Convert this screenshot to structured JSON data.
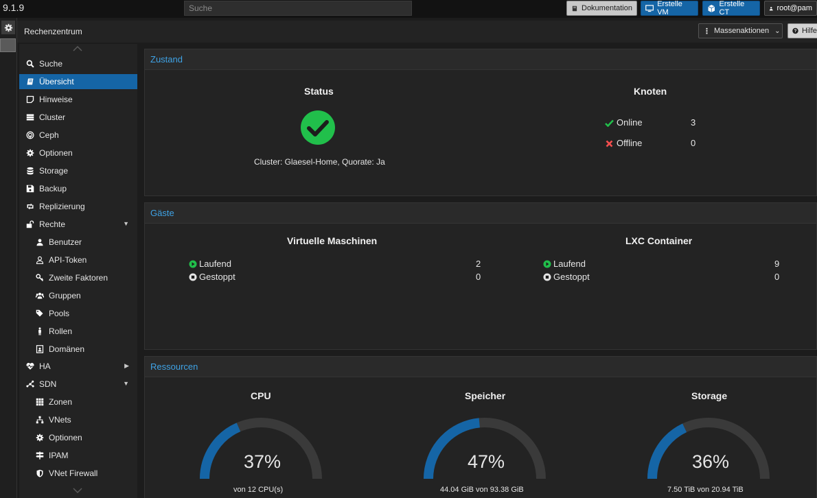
{
  "topbar": {
    "version": "9.1.9",
    "search_placeholder": "Suche",
    "docs_label": "Dokumentation",
    "create_vm_label": "Erstelle VM",
    "create_ct_label": "Erstelle CT",
    "user_label": "root@pam"
  },
  "header": {
    "title": "Rechenzentrum",
    "bulk_label": "Massenaktionen",
    "help_label": "Hilfe"
  },
  "nav": {
    "items": [
      {
        "label": "Suche",
        "icon": "search-icon"
      },
      {
        "label": "Übersicht",
        "icon": "book-icon"
      },
      {
        "label": "Hinweise",
        "icon": "note-icon"
      },
      {
        "label": "Cluster",
        "icon": "server-icon"
      },
      {
        "label": "Ceph",
        "icon": "ceph-icon"
      },
      {
        "label": "Optionen",
        "icon": "gear-icon"
      },
      {
        "label": "Storage",
        "icon": "database-icon"
      },
      {
        "label": "Backup",
        "icon": "floppy-icon"
      },
      {
        "label": "Replizierung",
        "icon": "retweet-icon"
      },
      {
        "label": "Rechte",
        "icon": "unlock-icon"
      },
      {
        "label": "Benutzer",
        "icon": "user-icon"
      },
      {
        "label": "API-Token",
        "icon": "user-outline-icon"
      },
      {
        "label": "Zweite Faktoren",
        "icon": "key-icon"
      },
      {
        "label": "Gruppen",
        "icon": "users-icon"
      },
      {
        "label": "Pools",
        "icon": "tags-icon"
      },
      {
        "label": "Rollen",
        "icon": "male-icon"
      },
      {
        "label": "Domänen",
        "icon": "id-badge-icon"
      },
      {
        "label": "HA",
        "icon": "heartbeat-icon"
      },
      {
        "label": "SDN",
        "icon": "sdn-icon"
      },
      {
        "label": "Zonen",
        "icon": "grid-icon"
      },
      {
        "label": "VNets",
        "icon": "sitemap-icon"
      },
      {
        "label": "Optionen",
        "icon": "gear-icon"
      },
      {
        "label": "IPAM",
        "icon": "signpost-icon"
      },
      {
        "label": "VNet Firewall",
        "icon": "shield-icon"
      }
    ]
  },
  "status_panel": {
    "title": "Zustand",
    "status_heading": "Status",
    "cluster_text": "Cluster: Glaesel-Home, Quorate: Ja",
    "nodes_heading": "Knoten",
    "online_label": "Online",
    "online_count": "3",
    "offline_label": "Offline",
    "offline_count": "0"
  },
  "guests_panel": {
    "title": "Gäste",
    "vm_heading": "Virtuelle Maschinen",
    "vm_running_label": "Laufend",
    "vm_running_count": "2",
    "vm_stopped_label": "Gestoppt",
    "vm_stopped_count": "0",
    "ct_heading": "LXC Container",
    "ct_running_label": "Laufend",
    "ct_running_count": "9",
    "ct_stopped_label": "Gestoppt",
    "ct_stopped_count": "0"
  },
  "resources_panel": {
    "title": "Ressourcen",
    "cpu": {
      "heading": "CPU",
      "percent_text": "37%",
      "value": 0.37,
      "sub": "von 12 CPU(s)"
    },
    "memory": {
      "heading": "Speicher",
      "percent_text": "47%",
      "value": 0.47,
      "sub": "44.04 GiB von 93.38 GiB"
    },
    "storage": {
      "heading": "Storage",
      "percent_text": "36%",
      "value": 0.36,
      "sub": "7.50 TiB von 20.94 TiB"
    }
  },
  "colors": {
    "accent": "#1565a6",
    "heading_blue": "#3fa3e6",
    "ok_green": "#21bf4b",
    "error_red": "#f54f4f",
    "gauge_track": "#3a3a3a",
    "gauge_fill": "#1565a6"
  }
}
